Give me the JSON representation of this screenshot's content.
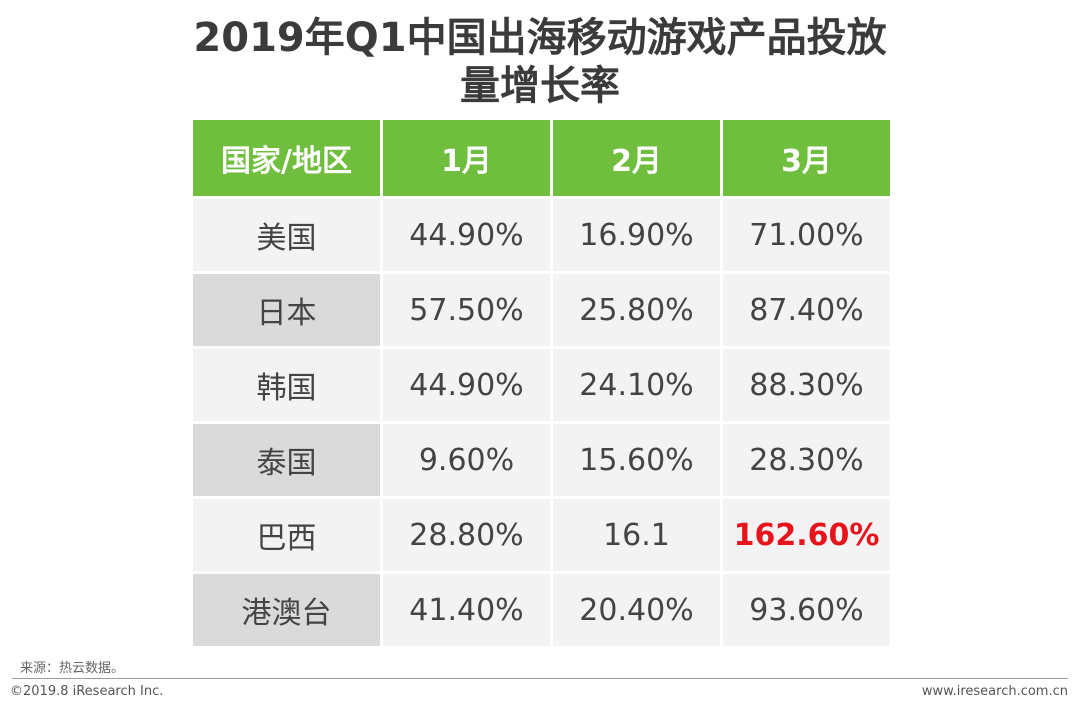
{
  "title_lines": [
    "2019年Q1中国出海移动游戏产品投放",
    "量增长率"
  ],
  "source": "来源：热云数据。",
  "footer": {
    "copyright": "©2019.8 iResearch Inc.",
    "website": "www.iresearch.com.cn"
  },
  "colors": {
    "header_green": "#6fbe3e",
    "highlight_red": "#e8141c"
  },
  "chart_data": {
    "type": "table",
    "columns": [
      "国家/地区",
      "1月",
      "2月",
      "3月"
    ],
    "rows": [
      {
        "region": "美国",
        "values": [
          "44.90%",
          "16.90%",
          "71.00%"
        ]
      },
      {
        "region": "日本",
        "values": [
          "57.50%",
          "25.80%",
          "87.40%"
        ]
      },
      {
        "region": "韩国",
        "values": [
          "44.90%",
          "24.10%",
          "88.30%"
        ]
      },
      {
        "region": "泰国",
        "values": [
          "9.60%",
          "15.60%",
          "28.30%"
        ]
      },
      {
        "region": "巴西",
        "values": [
          "28.80%",
          "16.1",
          "162.60%"
        ],
        "highlight": [
          false,
          false,
          true
        ]
      },
      {
        "region": "港澳台",
        "values": [
          "41.40%",
          "20.40%",
          "93.60%"
        ]
      }
    ]
  }
}
